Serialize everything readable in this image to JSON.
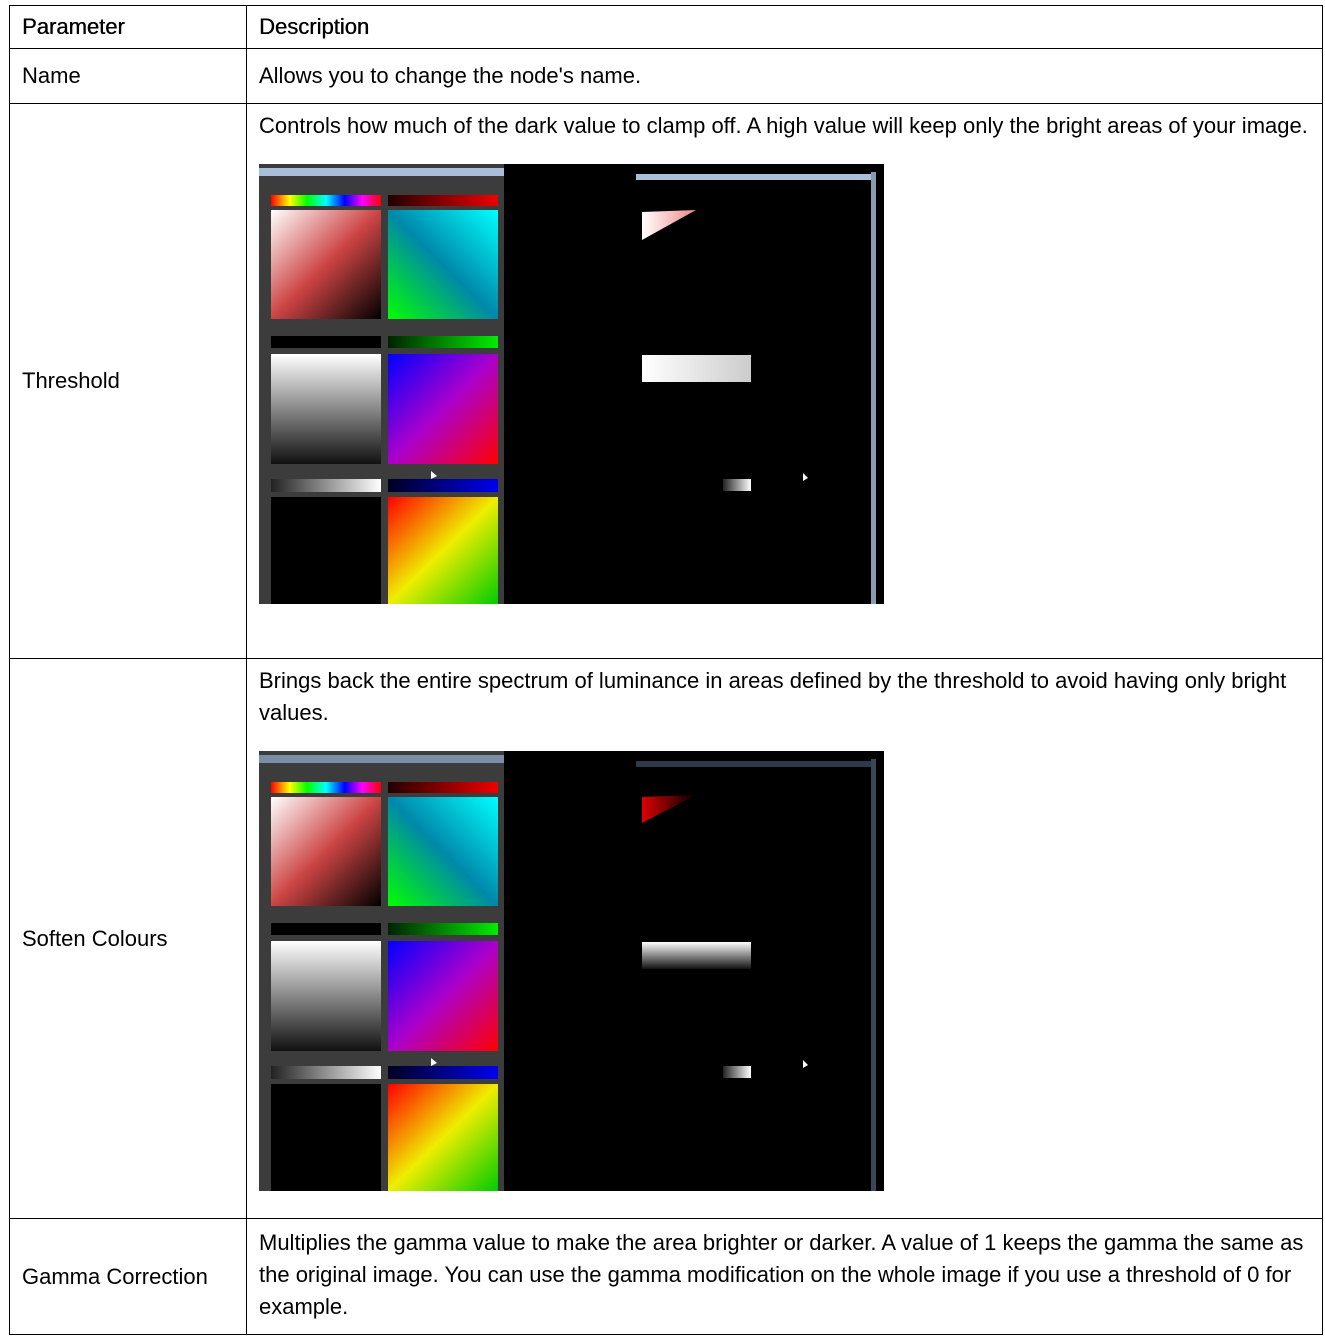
{
  "table": {
    "header": [
      "Parameter",
      "Description"
    ],
    "rows": [
      [
        "Name",
        "Allows you to change the node's name."
      ],
      [
        "Threshold",
        "Controls how much of the dark value to clamp off. A high value will keep only the bright areas of your image."
      ],
      [
        "Soften Colours",
        "Brings back the entire spectrum of luminance in areas defined by the threshold to avoid having only bright values."
      ],
      [
        "Gamma Correction",
        "Multiplies the gamma value to make the area brighter or darker. A value of 1 keeps the gamma the same as the original image. You can use the gamma modification on the whole image if you use a threshold of 0 for example."
      ]
    ]
  }
}
